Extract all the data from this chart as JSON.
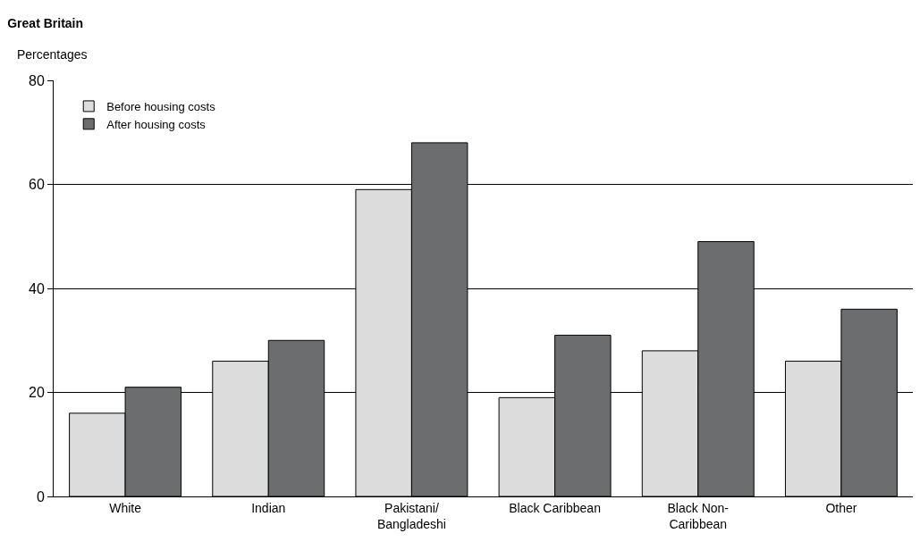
{
  "chart_data": {
    "type": "bar",
    "title": "Great Britain",
    "ylabel": "Percentages",
    "categories": [
      "White",
      "Indian",
      "Pakistani/\nBangladeshi",
      "Black Caribbean",
      "Black Non-\nCaribbean",
      "Other"
    ],
    "series": [
      {
        "name": "Before housing costs",
        "color": "#dcdcdc",
        "values": [
          16,
          26,
          59,
          19,
          28,
          26
        ]
      },
      {
        "name": "After housing costs",
        "color": "#6b6d6f",
        "values": [
          21,
          30,
          68,
          31,
          49,
          36
        ]
      }
    ],
    "ylim": [
      0,
      80
    ],
    "yticks": [
      0,
      20,
      40,
      60,
      80
    ],
    "grid": "y",
    "legend": "top left"
  }
}
